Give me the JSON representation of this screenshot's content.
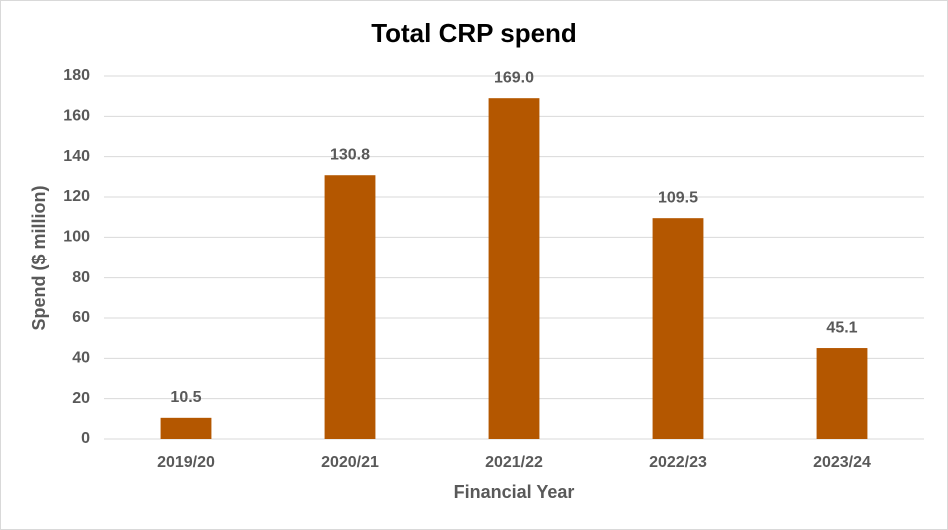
{
  "chart_data": {
    "type": "bar",
    "title": "Total CRP spend",
    "x_label": "Financial Year",
    "y_label": "Spend ($ million)",
    "categories": [
      "2019/20",
      "2020/21",
      "2021/22",
      "2022/23",
      "2023/24"
    ],
    "values": [
      10.5,
      130.8,
      169,
      109.5,
      45.1
    ],
    "value_labels": [
      "10.5",
      "130.8",
      "169.0",
      "109.5",
      "45.1"
    ],
    "color": "#b45700",
    "ylim": [
      0,
      180
    ],
    "yticks": [
      0,
      20,
      40,
      60,
      80,
      100,
      120,
      140,
      160,
      180
    ],
    "grid": true
  }
}
